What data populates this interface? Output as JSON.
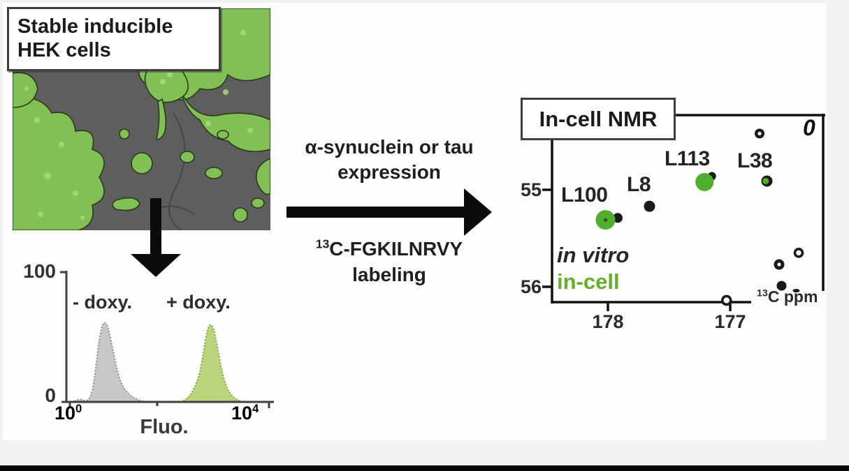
{
  "figure": {
    "cells_panel": {
      "label_line1": "Stable inducible",
      "label_line2": "HEK cells"
    },
    "flow_histogram": {
      "y_max": "100",
      "y_min": "0",
      "x_min_base": "10",
      "x_min_exp": "0",
      "x_max_base": "10",
      "x_max_exp": "4",
      "x_label": "Fluo.",
      "minus_doxy": "- doxy.",
      "plus_doxy": "+ doxy."
    },
    "process_arrow": {
      "top_line1": "α-synuclein or tau",
      "top_line2": "expression",
      "bottom_iso": "13",
      "bottom_line1": "C-FGKILNRVY",
      "bottom_line2": "labeling"
    },
    "nmr_panel": {
      "title": "In-cell NMR",
      "ytick1": "55",
      "ytick2": "56",
      "xtick1": "178",
      "xtick2": "177",
      "unit_iso": "13",
      "unit": "C ppm",
      "corner_mark": "0",
      "labels": {
        "l100": "L100",
        "l8": "L8",
        "l113": "L113",
        "l38": "L38"
      },
      "legend_invitro": "in vitro",
      "legend_incell": "in-cell"
    }
  },
  "colors": {
    "incell_green": "#4fae2b",
    "incell_text_green": "#64b02a",
    "invitro_black": "#1a1a1a",
    "histogram_gray_fill": "#c7c7c7",
    "histogram_green_fill": "#b9d47d",
    "micrograph_gray": "#5e5e5e",
    "cell_green": "#82c055"
  },
  "chart_data": [
    {
      "type": "area",
      "title": "Flow cytometry fluorescence histogram",
      "xlabel": "Fluo.",
      "x_scale": "log10",
      "x_range": [
        1,
        10000
      ],
      "ylim": [
        0,
        100
      ],
      "y_ticks": [
        0,
        100
      ],
      "series": [
        {
          "name": "- doxy.",
          "color": "#c7c7c7",
          "peak_center_log10": 0.7,
          "peak_height": 60
        },
        {
          "name": "+ doxy.",
          "color": "#b9d47d",
          "peak_center_log10": 2.8,
          "peak_height": 58
        }
      ]
    },
    {
      "type": "scatter",
      "title": "In-cell NMR",
      "xlabel": "13C ppm",
      "x_inverted": true,
      "x_ticks": [
        178,
        177
      ],
      "y_inverted": true,
      "y_ticks": [
        55,
        56
      ],
      "series": [
        {
          "name": "in vitro",
          "color": "#1a1a1a"
        },
        {
          "name": "in-cell",
          "color": "#4fae2b"
        }
      ],
      "points": [
        {
          "x": 176.76,
          "y": 54.42,
          "series": "in vitro",
          "style": "dot-hole",
          "r": 7
        },
        {
          "x": 177.15,
          "y": 54.86,
          "series": "in vitro",
          "style": "filled",
          "r": 6,
          "label": "L113"
        },
        {
          "x": 177.21,
          "y": 54.92,
          "series": "in-cell",
          "style": "filled",
          "r": 13,
          "label": "L113"
        },
        {
          "x": 176.7,
          "y": 54.91,
          "series": "in vitro",
          "style": "filled",
          "r": 8,
          "label": "L38"
        },
        {
          "x": 176.71,
          "y": 54.91,
          "series": "in-cell",
          "style": "filled",
          "r": 4.5,
          "label": "L38"
        },
        {
          "x": 177.66,
          "y": 55.17,
          "series": "in vitro",
          "style": "filled",
          "r": 8,
          "label": "L8"
        },
        {
          "x": 177.92,
          "y": 55.29,
          "series": "in vitro",
          "style": "filled",
          "r": 7,
          "label": "L100"
        },
        {
          "x": 178.02,
          "y": 55.31,
          "series": "in-cell",
          "style": "dot-hole",
          "r": 14,
          "label": "L100"
        },
        {
          "x": 176.44,
          "y": 55.65,
          "series": "in vitro",
          "style": "ring",
          "r": 5.5
        },
        {
          "x": 176.6,
          "y": 55.77,
          "series": "in vitro",
          "style": "dot-hole",
          "r": 7.5
        },
        {
          "x": 176.58,
          "y": 55.99,
          "series": "in vitro",
          "style": "filled",
          "r": 7
        },
        {
          "x": 176.46,
          "y": 56.04,
          "series": "in vitro",
          "style": "dash",
          "r": 5
        },
        {
          "x": 177.03,
          "y": 56.14,
          "series": "in vitro",
          "style": "ring",
          "r": 6
        }
      ]
    }
  ]
}
